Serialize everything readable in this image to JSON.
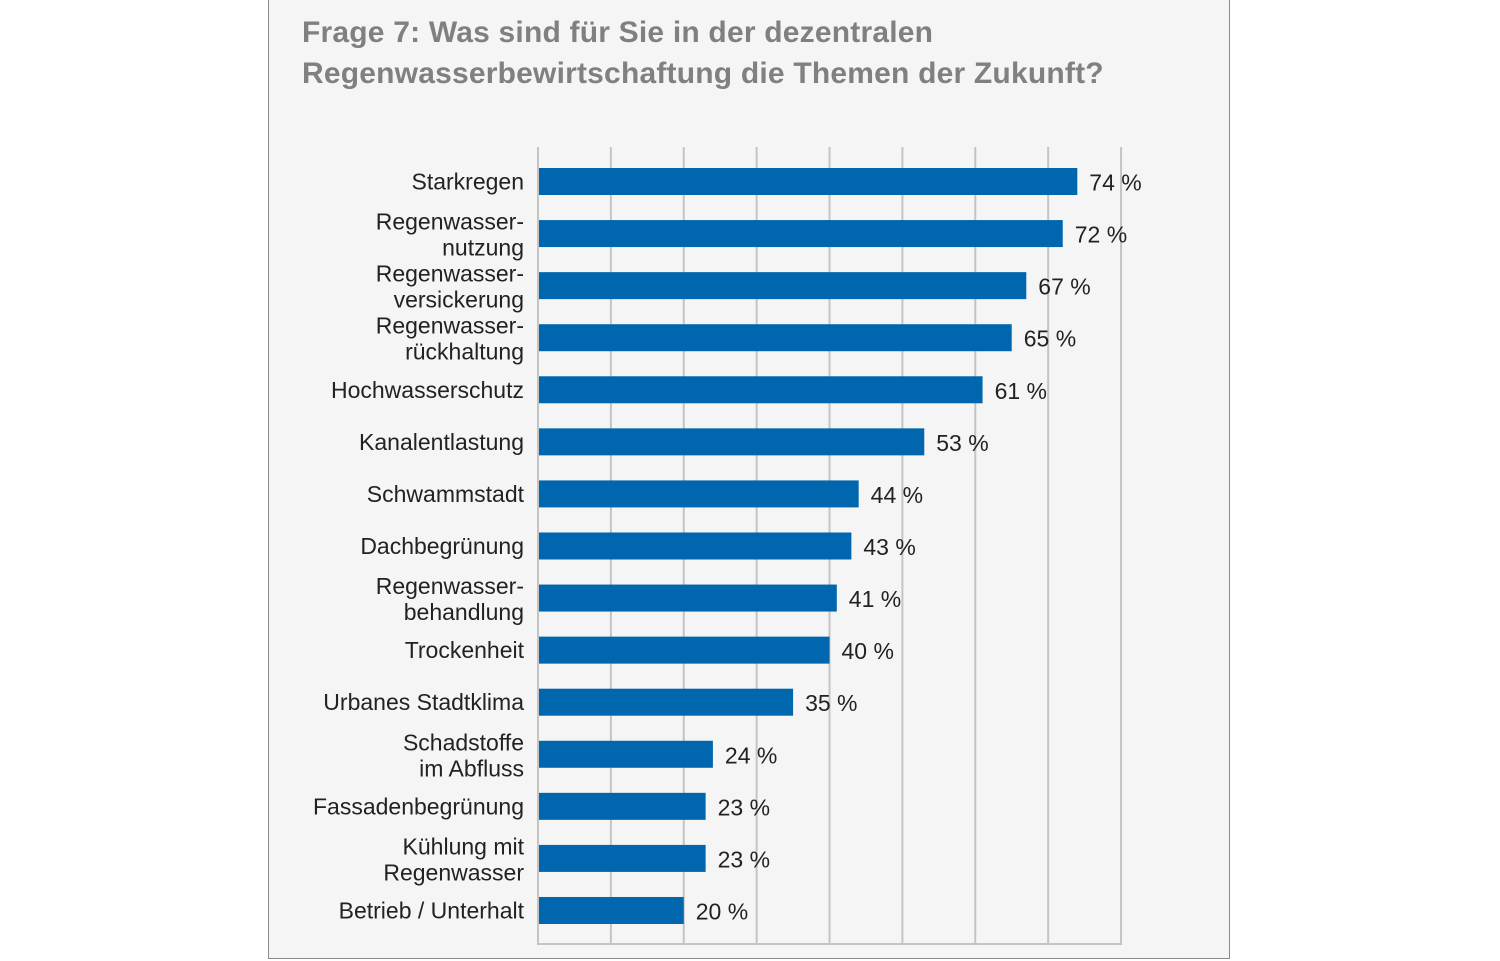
{
  "title": {
    "line1": "Frage 7: Was sind für Sie in der dezentralen",
    "line2": "Regenwasserbewirtschaftung die Themen der Zukunft?"
  },
  "colors": {
    "bar": "#0066ad",
    "grid": "#c4c4c4",
    "panel": "#f5f5f5",
    "title": "#808080"
  },
  "chart_data": {
    "type": "bar",
    "orientation": "horizontal",
    "title": "Frage 7: Was sind für Sie in der dezentralen Regenwasserbewirtschaftung die Themen der Zukunft?",
    "unit": "%",
    "xlim": [
      0,
      80
    ],
    "grid": true,
    "categories": [
      [
        "Starkregen"
      ],
      [
        "Regenwasser-",
        "nutzung"
      ],
      [
        "Regenwasser-",
        "versickerung"
      ],
      [
        "Regenwasser-",
        "rückhaltung"
      ],
      [
        "Hochwasserschutz"
      ],
      [
        "Kanalentlastung"
      ],
      [
        "Schwammstadt"
      ],
      [
        "Dachbegrünung"
      ],
      [
        "Regenwasser-",
        "behandlung"
      ],
      [
        "Trockenheit"
      ],
      [
        "Urbanes Stadtklima"
      ],
      [
        "Schadstoffe",
        "im Abfluss"
      ],
      [
        "Fassadenbegrünung"
      ],
      [
        "Kühlung mit",
        "Regenwasser"
      ],
      [
        "Betrieb / Unterhalt"
      ]
    ],
    "values": [
      74,
      72,
      67,
      65,
      61,
      53,
      44,
      43,
      41,
      40,
      35,
      24,
      23,
      23,
      20
    ],
    "value_labels": [
      "74 %",
      "72 %",
      "67 %",
      "65 %",
      "61 %",
      "53 %",
      "44 %",
      "43 %",
      "41 %",
      "40 %",
      "35 %",
      "24 %",
      "23 %",
      "23 %",
      "20 %"
    ]
  }
}
